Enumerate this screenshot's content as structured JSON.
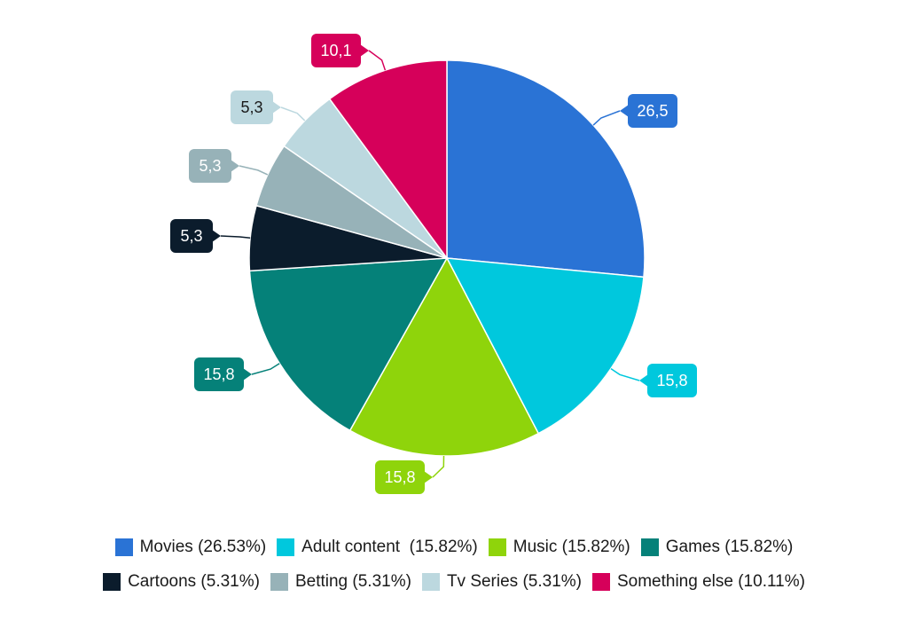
{
  "chart_data": {
    "type": "pie",
    "start_angle_deg": 0,
    "direction": "clockwise",
    "slices": [
      {
        "label": "Movies",
        "legend_label": "Movies (26.53%)",
        "value": 26.5,
        "display": "26,5",
        "percent": 26.53,
        "color": "#2a73d5",
        "text_color": "#ffffff"
      },
      {
        "label": "Adult content",
        "legend_label": "Adult content  (15.82%)",
        "value": 15.8,
        "display": "15,8",
        "percent": 15.82,
        "color": "#00c8dd",
        "text_color": "#ffffff"
      },
      {
        "label": "Music",
        "legend_label": "Music (15.82%)",
        "value": 15.8,
        "display": "15,8",
        "percent": 15.82,
        "color": "#8fd40b",
        "text_color": "#ffffff"
      },
      {
        "label": "Games",
        "legend_label": "Games (15.82%)",
        "value": 15.8,
        "display": "15,8",
        "percent": 15.82,
        "color": "#058179",
        "text_color": "#ffffff"
      },
      {
        "label": "Cartoons",
        "legend_label": "Cartoons (5.31%)",
        "value": 5.3,
        "display": "5,3",
        "percent": 5.31,
        "color": "#0b1c2c",
        "text_color": "#ffffff"
      },
      {
        "label": "Betting",
        "legend_label": "Betting (5.31%)",
        "value": 5.3,
        "display": "5,3",
        "percent": 5.31,
        "color": "#97b2b8",
        "text_color": "#ffffff"
      },
      {
        "label": "Tv Series",
        "legend_label": "Tv Series (5.31%)",
        "value": 5.3,
        "display": "5,3",
        "percent": 5.31,
        "color": "#bcd8df",
        "text_color": "#1a1a1a"
      },
      {
        "label": "Something else",
        "legend_label": "Something else (10.11%)",
        "value": 10.1,
        "display": "10,1",
        "percent": 10.11,
        "color": "#d6005a",
        "text_color": "#ffffff"
      }
    ],
    "legend_position": "bottom",
    "title": ""
  }
}
